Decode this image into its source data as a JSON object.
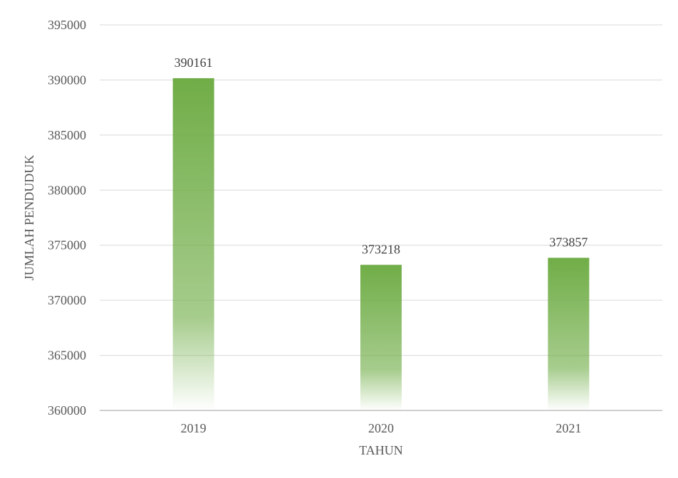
{
  "chart_data": {
    "type": "bar",
    "title": "",
    "xlabel": "TAHUN",
    "ylabel": "JUMLAH PENDUDUK",
    "categories": [
      "2019",
      "2020",
      "2021"
    ],
    "values": [
      390161,
      373218,
      373857
    ],
    "data_labels": [
      "390161",
      "373218",
      "373857"
    ],
    "ylim": [
      360000,
      395000
    ],
    "yticks": [
      360000,
      365000,
      370000,
      375000,
      380000,
      385000,
      390000,
      395000
    ],
    "ytick_labels": [
      "360000",
      "365000",
      "370000",
      "375000",
      "380000",
      "385000",
      "390000",
      "395000"
    ],
    "grid": true,
    "legend": "none",
    "colors": {
      "bar": "#70ad47",
      "grid": "#d9d9d9",
      "axis": "#bfbfbf"
    }
  }
}
